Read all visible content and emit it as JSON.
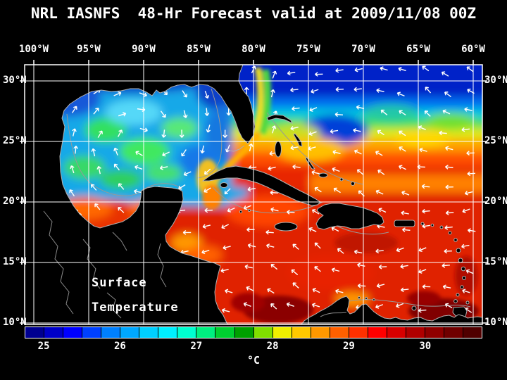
{
  "title": "NRL IASNFS  48-Hr Forecast valid at 2009/11/08 00Z",
  "overlay_label": {
    "line1": "Surface",
    "line2": "Temperature"
  },
  "axes": {
    "longitude_labels": [
      "100°W",
      "95°W",
      "90°W",
      "85°W",
      "80°W",
      "75°W",
      "70°W",
      "65°W",
      "60°W"
    ],
    "latitude_labels": [
      "30°N",
      "25°N",
      "20°N",
      "15°N",
      "10°N"
    ]
  },
  "colorbar": {
    "unit": "°C",
    "tick_labels": [
      "25",
      "26",
      "27",
      "28",
      "29",
      "30"
    ],
    "scale_min": 24.75,
    "scale_max": 30.75,
    "segment_step": 0.25,
    "segment_colors": [
      "#000090",
      "#0000C8",
      "#0000FF",
      "#0040FF",
      "#0080FF",
      "#00A8FF",
      "#00D0FF",
      "#00F0FF",
      "#00FFD0",
      "#00F080",
      "#00D030",
      "#00A000",
      "#80E000",
      "#F0F000",
      "#FFC800",
      "#FF9800",
      "#FF6000",
      "#FF3000",
      "#FF0000",
      "#D80000",
      "#B00000",
      "#900000",
      "#700000",
      "#500000"
    ]
  },
  "map_colors": {
    "background": "#000000",
    "land": "#000000",
    "coastline": "#b0b0b0",
    "grid": "#ffffff",
    "vectors": "#ffffff"
  }
}
